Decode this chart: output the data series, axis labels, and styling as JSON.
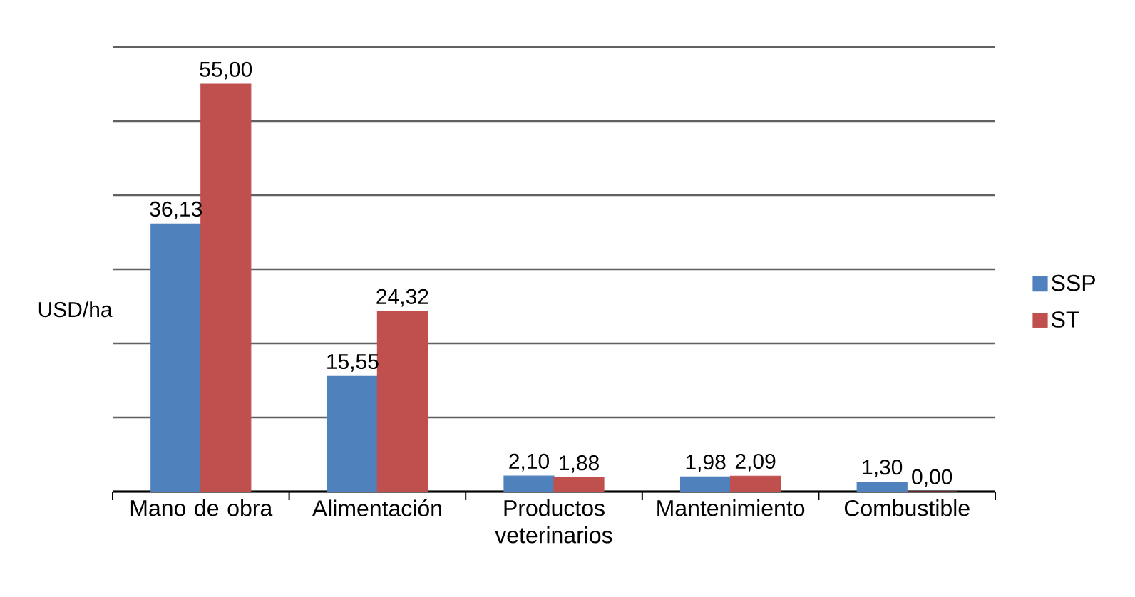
{
  "chart_data": {
    "type": "bar",
    "ylabel": "USD/ha",
    "categories": [
      "Mano de obra",
      "Alimentación",
      "Productos veterinarios",
      "Mantenimiento",
      "Combustible"
    ],
    "series": [
      {
        "name": "SSP",
        "color": "#4f81bd",
        "values": [
          36.13,
          15.55,
          2.1,
          1.98,
          1.3
        ],
        "value_labels": [
          "36,13",
          "15,55",
          "2,10",
          "1,98",
          "1,30"
        ]
      },
      {
        "name": "ST",
        "color": "#c0504d",
        "values": [
          55.0,
          24.32,
          1.88,
          2.09,
          0.0
        ],
        "value_labels": [
          "55,00",
          "24,32",
          "1,88",
          "2,09",
          "0,00"
        ]
      }
    ],
    "ylim": [
      0,
      60
    ],
    "yticks": [
      {
        "value": 0,
        "label": null
      },
      {
        "value": 10,
        "label": null
      },
      {
        "value": 20,
        "label": null
      },
      {
        "value": 30,
        "label": null
      },
      {
        "value": 40,
        "label": null
      },
      {
        "value": 50,
        "label": null
      },
      {
        "value": 60,
        "label": null
      }
    ],
    "grid": "y",
    "tick_labels": "x",
    "legend": "right"
  }
}
